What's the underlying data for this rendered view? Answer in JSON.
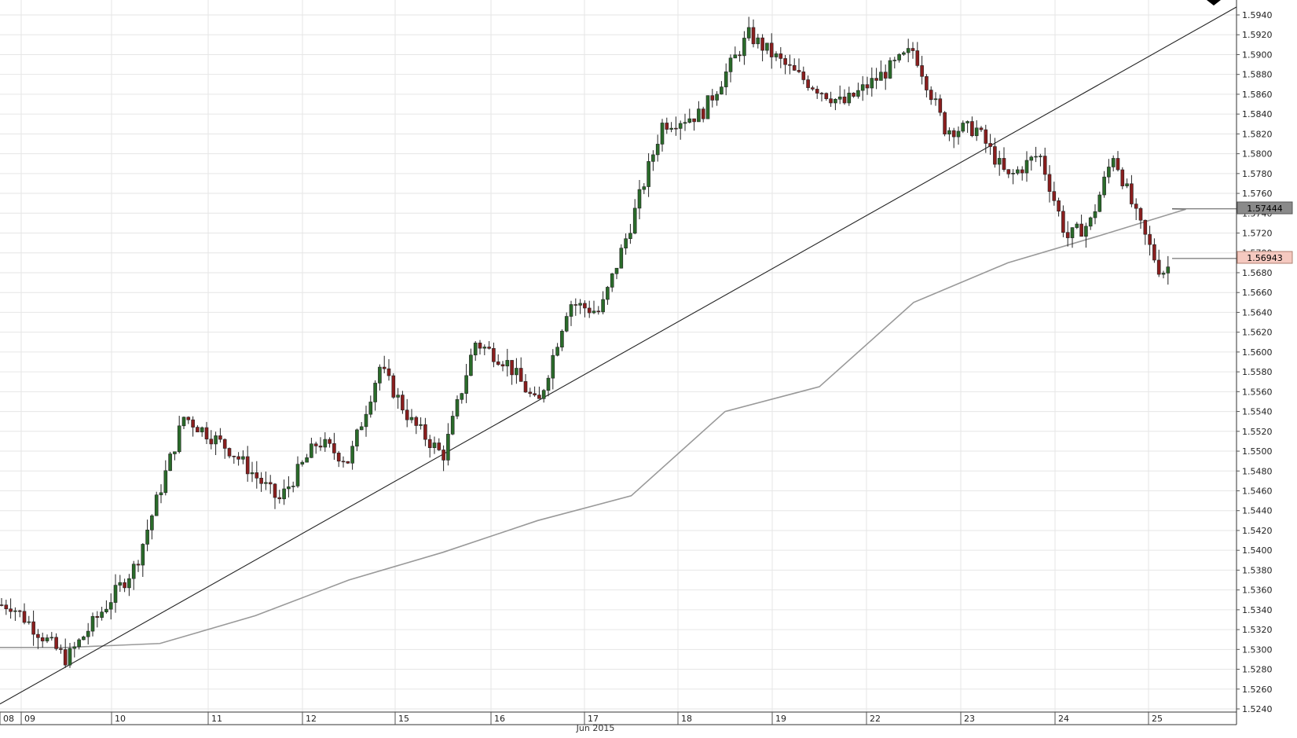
{
  "chart_data": {
    "type": "candlestick",
    "x_unit": "date (June 2015)",
    "x_axis_label": "Jun 2015",
    "day_labels": [
      "08",
      "09",
      "10",
      "11",
      "12",
      "15",
      "16",
      "17",
      "18",
      "19",
      "22",
      "23",
      "24",
      "25"
    ],
    "y_ticks": [
      "1.5240",
      "1.5260",
      "1.5280",
      "1.5300",
      "1.5320",
      "1.5340",
      "1.5360",
      "1.5380",
      "1.5400",
      "1.5420",
      "1.5440",
      "1.5460",
      "1.5480",
      "1.5500",
      "1.5520",
      "1.5540",
      "1.5560",
      "1.5580",
      "1.5600",
      "1.5620",
      "1.5640",
      "1.5660",
      "1.5680",
      "1.5700",
      "1.5720",
      "1.5740",
      "1.5760",
      "1.5780",
      "1.5800",
      "1.5820",
      "1.5840",
      "1.5860",
      "1.5880",
      "1.5900",
      "1.5920",
      "1.5940"
    ],
    "ylim": [
      1.5233,
      1.5952
    ],
    "grid": true,
    "current_price": "1.56943",
    "moving_average_value": "1.57444",
    "price_path_approx": [
      {
        "t": "08",
        "price": 1.5345
      },
      {
        "t": "09",
        "price": 1.529
      },
      {
        "t": "10",
        "price": 1.5385
      },
      {
        "t": "10 late",
        "price": 1.5535
      },
      {
        "t": "11",
        "price": 1.55
      },
      {
        "t": "11 mid",
        "price": 1.545
      },
      {
        "t": "12",
        "price": 1.551
      },
      {
        "t": "12 late",
        "price": 1.549
      },
      {
        "t": "12 close",
        "price": 1.5585
      },
      {
        "t": "15",
        "price": 1.553
      },
      {
        "t": "15 low",
        "price": 1.5495
      },
      {
        "t": "15 late",
        "price": 1.561
      },
      {
        "t": "16",
        "price": 1.559
      },
      {
        "t": "16 low",
        "price": 1.5545
      },
      {
        "t": "16 late",
        "price": 1.565
      },
      {
        "t": "17",
        "price": 1.564
      },
      {
        "t": "17 late",
        "price": 1.573
      },
      {
        "t": "17 close",
        "price": 1.583
      },
      {
        "t": "18",
        "price": 1.584
      },
      {
        "t": "18 peak",
        "price": 1.592
      },
      {
        "t": "19",
        "price": 1.588
      },
      {
        "t": "19 late",
        "price": 1.585
      },
      {
        "t": "22",
        "price": 1.588
      },
      {
        "t": "22 high",
        "price": 1.5905
      },
      {
        "t": "22 late",
        "price": 1.5825
      },
      {
        "t": "23",
        "price": 1.5825
      },
      {
        "t": "23 low",
        "price": 1.5775
      },
      {
        "t": "23 high",
        "price": 1.58
      },
      {
        "t": "24",
        "price": 1.5715
      },
      {
        "t": "24 mid",
        "price": 1.573
      },
      {
        "t": "24 high",
        "price": 1.58
      },
      {
        "t": "24 late",
        "price": 1.5735
      },
      {
        "t": "25",
        "price": 1.568
      },
      {
        "t": "25 mid",
        "price": 1.57
      },
      {
        "t": "25 last",
        "price": 1.5694
      }
    ],
    "moving_average_path_approx": [
      {
        "t": "08",
        "price": 1.5302
      },
      {
        "t": "09",
        "price": 1.5302
      },
      {
        "t": "10",
        "price": 1.5306
      },
      {
        "t": "11",
        "price": 1.5334
      },
      {
        "t": "12",
        "price": 1.537
      },
      {
        "t": "15",
        "price": 1.5398
      },
      {
        "t": "16",
        "price": 1.543
      },
      {
        "t": "17",
        "price": 1.5455
      },
      {
        "t": "18",
        "price": 1.554
      },
      {
        "t": "19",
        "price": 1.5565
      },
      {
        "t": "22",
        "price": 1.565
      },
      {
        "t": "23",
        "price": 1.569
      },
      {
        "t": "24",
        "price": 1.5718
      },
      {
        "t": "25",
        "price": 1.5744
      }
    ],
    "trend_line": {
      "from": {
        "t": "08",
        "price": 1.5245
      },
      "to": {
        "t": "25 end",
        "price": 1.5948
      }
    }
  },
  "colors": {
    "bull": "#2a6b2a",
    "bear": "#8a1e1e",
    "grid": "#e6e6e6",
    "ma_line": "#999999",
    "trend_line": "#222222",
    "ma_label_bg": "#8a8a8a",
    "price_label_bg": "#f5c9c0"
  }
}
